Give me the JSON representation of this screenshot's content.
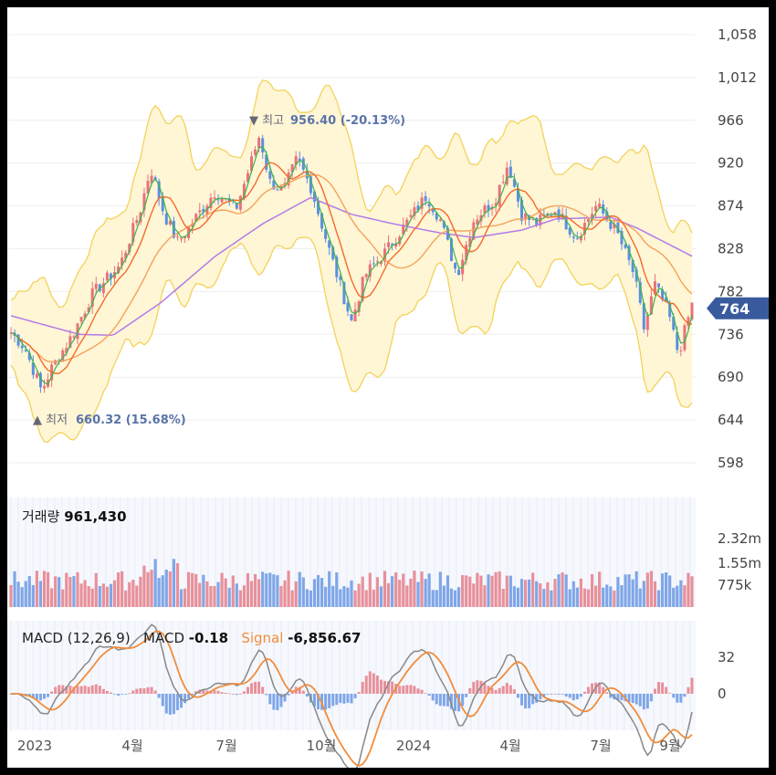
{
  "colors": {
    "up": "#e8727a",
    "down": "#5b8fe0",
    "ma5": "#3bb54a",
    "ma20": "#f36b2b",
    "ma60": "#f4a259",
    "ma120": "#b27be8",
    "bb": "#f3d25a",
    "bbfill": "#fff6d6",
    "vol_up": "#e8909a",
    "vol_down": "#7fa6e8",
    "macd": "#888888",
    "signal": "#f28c3b",
    "current": "#3a5a9e"
  },
  "price_axis": {
    "ticks": [
      "1,058",
      "1,012",
      "966",
      "920",
      "874",
      "828",
      "782",
      "736",
      "690",
      "644",
      "598"
    ],
    "values": [
      1058,
      1012,
      966,
      920,
      874,
      828,
      782,
      736,
      690,
      644,
      598
    ],
    "current": "764"
  },
  "annotations": {
    "high": {
      "marker": "▼",
      "label": "최고",
      "value": "956.40",
      "pct": "(-20.13%)"
    },
    "low": {
      "marker": "▲",
      "label": "최저",
      "value": "660.32",
      "pct": "(15.68%)"
    }
  },
  "volume": {
    "label": "거래량",
    "value": "961,430",
    "ticks": [
      "2.32m",
      "1.55m",
      "775k"
    ]
  },
  "macd": {
    "label": "MACD",
    "params": "(12,26,9)",
    "macd_label": "MACD",
    "macd_value": "-0.18",
    "signal_label": "Signal",
    "signal_value": "-6,856.67",
    "ticks": [
      "32",
      "0"
    ]
  },
  "x_axis": {
    "labels": [
      "2023",
      "4월",
      "7월",
      "10월",
      "2024",
      "4월",
      "7월",
      "9월"
    ]
  },
  "chart_data": {
    "type": "line",
    "title": "",
    "y_range": [
      598,
      1058
    ],
    "price_keypoints": [
      {
        "t": 0,
        "v": 738
      },
      {
        "t": 0.02,
        "v": 722
      },
      {
        "t": 0.045,
        "v": 675
      },
      {
        "t": 0.06,
        "v": 700
      },
      {
        "t": 0.09,
        "v": 735
      },
      {
        "t": 0.12,
        "v": 780
      },
      {
        "t": 0.16,
        "v": 810
      },
      {
        "t": 0.19,
        "v": 870
      },
      {
        "t": 0.205,
        "v": 915
      },
      {
        "t": 0.225,
        "v": 865
      },
      {
        "t": 0.245,
        "v": 835
      },
      {
        "t": 0.27,
        "v": 860
      },
      {
        "t": 0.3,
        "v": 890
      },
      {
        "t": 0.33,
        "v": 870
      },
      {
        "t": 0.35,
        "v": 915
      },
      {
        "t": 0.365,
        "v": 950
      },
      {
        "t": 0.38,
        "v": 900
      },
      {
        "t": 0.4,
        "v": 890
      },
      {
        "t": 0.42,
        "v": 925
      },
      {
        "t": 0.44,
        "v": 895
      },
      {
        "t": 0.47,
        "v": 820
      },
      {
        "t": 0.5,
        "v": 750
      },
      {
        "t": 0.52,
        "v": 800
      },
      {
        "t": 0.55,
        "v": 825
      },
      {
        "t": 0.58,
        "v": 855
      },
      {
        "t": 0.61,
        "v": 885
      },
      {
        "t": 0.63,
        "v": 860
      },
      {
        "t": 0.655,
        "v": 800
      },
      {
        "t": 0.68,
        "v": 860
      },
      {
        "t": 0.71,
        "v": 880
      },
      {
        "t": 0.73,
        "v": 920
      },
      {
        "t": 0.75,
        "v": 865
      },
      {
        "t": 0.77,
        "v": 855
      },
      {
        "t": 0.8,
        "v": 870
      },
      {
        "t": 0.83,
        "v": 840
      },
      {
        "t": 0.86,
        "v": 875
      },
      {
        "t": 0.89,
        "v": 845
      },
      {
        "t": 0.915,
        "v": 800
      },
      {
        "t": 0.93,
        "v": 740
      },
      {
        "t": 0.945,
        "v": 790
      },
      {
        "t": 0.965,
        "v": 760
      },
      {
        "t": 0.98,
        "v": 715
      },
      {
        "t": 1.0,
        "v": 768
      }
    ],
    "ma120_keypoints": [
      {
        "t": 0,
        "v": 756
      },
      {
        "t": 0.1,
        "v": 736
      },
      {
        "t": 0.15,
        "v": 735
      },
      {
        "t": 0.22,
        "v": 770
      },
      {
        "t": 0.3,
        "v": 820
      },
      {
        "t": 0.37,
        "v": 855
      },
      {
        "t": 0.44,
        "v": 883
      },
      {
        "t": 0.5,
        "v": 865
      },
      {
        "t": 0.56,
        "v": 855
      },
      {
        "t": 0.63,
        "v": 845
      },
      {
        "t": 0.68,
        "v": 840
      },
      {
        "t": 0.75,
        "v": 848
      },
      {
        "t": 0.8,
        "v": 860
      },
      {
        "t": 0.88,
        "v": 862
      },
      {
        "t": 0.92,
        "v": 850
      },
      {
        "t": 1.0,
        "v": 820
      }
    ],
    "series": [
      {
        "name": "MACD"
      },
      {
        "name": "Signal"
      }
    ]
  }
}
